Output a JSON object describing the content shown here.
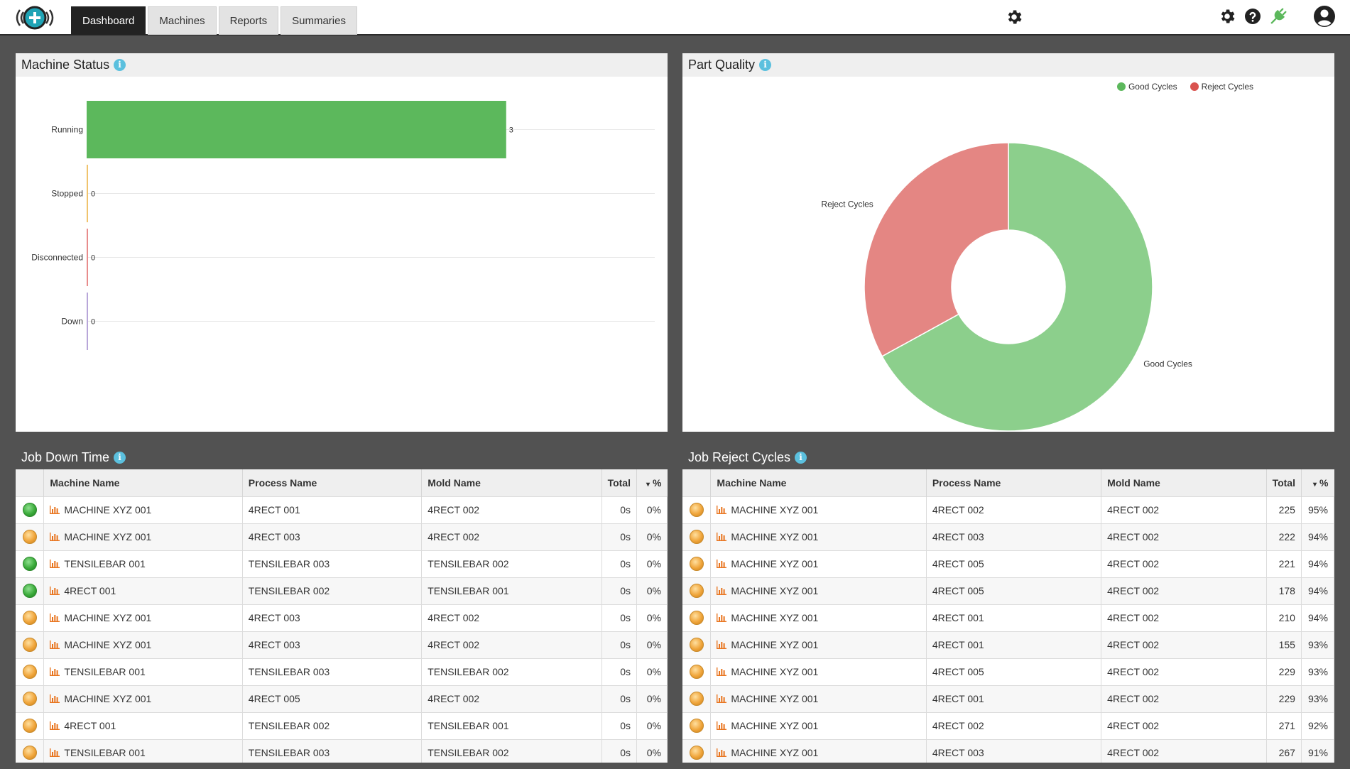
{
  "nav": {
    "logo_icon": "plus-signal-logo",
    "tabs": [
      {
        "label": "Dashboard",
        "active": true
      },
      {
        "label": "Machines",
        "active": false
      },
      {
        "label": "Reports",
        "active": false
      },
      {
        "label": "Summaries",
        "active": false
      }
    ],
    "icons": [
      "gear-icon",
      "help-icon",
      "plug-icon",
      "user-account-icon"
    ],
    "plug_color": "#5cb85c"
  },
  "machine_status": {
    "title": "Machine Status",
    "info_glyph": "i"
  },
  "part_quality": {
    "title": "Part Quality",
    "info_glyph": "i",
    "legend": [
      {
        "label": "Good Cycles",
        "color": "#5cb85c"
      },
      {
        "label": "Reject Cycles",
        "color": "#d9534f"
      }
    ]
  },
  "chart_data": [
    {
      "type": "bar",
      "orientation": "horizontal",
      "categories": [
        "Running",
        "Stopped",
        "Disconnected",
        "Down"
      ],
      "values": [
        3,
        0,
        0,
        0
      ],
      "colors": [
        "#5cb85c",
        "#f0c36d",
        "#e88c8c",
        "#b8a6d9"
      ],
      "xlim": [
        0,
        3.25
      ],
      "grid": true
    },
    {
      "type": "pie",
      "donut": true,
      "labels": [
        "Good Cycles",
        "Reject Cycles"
      ],
      "values": [
        67,
        33
      ],
      "colors": [
        "#8ccf8c",
        "#e48683"
      ]
    }
  ],
  "job_down_time": {
    "title": "Job Down Time",
    "info_glyph": "i",
    "columns": [
      "Machine Name",
      "Process Name",
      "Mold Name",
      "Total",
      "%"
    ],
    "sort_glyph": "▾",
    "rows": [
      {
        "status": "green",
        "machine": "MACHINE XYZ 001",
        "process": "4RECT 001",
        "mold": "4RECT 002",
        "total": "0s",
        "pct": "0%"
      },
      {
        "status": "orange",
        "machine": "MACHINE XYZ 001",
        "process": "4RECT 003",
        "mold": "4RECT 002",
        "total": "0s",
        "pct": "0%"
      },
      {
        "status": "green",
        "machine": "TENSILEBAR 001",
        "process": "TENSILEBAR 003",
        "mold": "TENSILEBAR 002",
        "total": "0s",
        "pct": "0%"
      },
      {
        "status": "green",
        "machine": "4RECT 001",
        "process": "TENSILEBAR 002",
        "mold": "TENSILEBAR 001",
        "total": "0s",
        "pct": "0%"
      },
      {
        "status": "orange",
        "machine": "MACHINE XYZ 001",
        "process": "4RECT 003",
        "mold": "4RECT 002",
        "total": "0s",
        "pct": "0%"
      },
      {
        "status": "orange",
        "machine": "MACHINE XYZ 001",
        "process": "4RECT 003",
        "mold": "4RECT 002",
        "total": "0s",
        "pct": "0%"
      },
      {
        "status": "orange",
        "machine": "TENSILEBAR 001",
        "process": "TENSILEBAR 003",
        "mold": "TENSILEBAR 002",
        "total": "0s",
        "pct": "0%"
      },
      {
        "status": "orange",
        "machine": "MACHINE XYZ 001",
        "process": "4RECT 005",
        "mold": "4RECT 002",
        "total": "0s",
        "pct": "0%"
      },
      {
        "status": "orange",
        "machine": "4RECT 001",
        "process": "TENSILEBAR 002",
        "mold": "TENSILEBAR 001",
        "total": "0s",
        "pct": "0%"
      },
      {
        "status": "orange",
        "machine": "TENSILEBAR 001",
        "process": "TENSILEBAR 003",
        "mold": "TENSILEBAR 002",
        "total": "0s",
        "pct": "0%"
      }
    ]
  },
  "job_reject_cycles": {
    "title": "Job Reject Cycles",
    "info_glyph": "i",
    "columns": [
      "Machine Name",
      "Process Name",
      "Mold Name",
      "Total",
      "%"
    ],
    "sort_glyph": "▾",
    "rows": [
      {
        "status": "orange",
        "machine": "MACHINE XYZ 001",
        "process": "4RECT 002",
        "mold": "4RECT 002",
        "total": "225",
        "pct": "95%"
      },
      {
        "status": "orange",
        "machine": "MACHINE XYZ 001",
        "process": "4RECT 003",
        "mold": "4RECT 002",
        "total": "222",
        "pct": "94%"
      },
      {
        "status": "orange",
        "machine": "MACHINE XYZ 001",
        "process": "4RECT 005",
        "mold": "4RECT 002",
        "total": "221",
        "pct": "94%"
      },
      {
        "status": "orange",
        "machine": "MACHINE XYZ 001",
        "process": "4RECT 005",
        "mold": "4RECT 002",
        "total": "178",
        "pct": "94%"
      },
      {
        "status": "orange",
        "machine": "MACHINE XYZ 001",
        "process": "4RECT 001",
        "mold": "4RECT 002",
        "total": "210",
        "pct": "94%"
      },
      {
        "status": "orange",
        "machine": "MACHINE XYZ 001",
        "process": "4RECT 001",
        "mold": "4RECT 002",
        "total": "155",
        "pct": "93%"
      },
      {
        "status": "orange",
        "machine": "MACHINE XYZ 001",
        "process": "4RECT 005",
        "mold": "4RECT 002",
        "total": "229",
        "pct": "93%"
      },
      {
        "status": "orange",
        "machine": "MACHINE XYZ 001",
        "process": "4RECT 001",
        "mold": "4RECT 002",
        "total": "229",
        "pct": "93%"
      },
      {
        "status": "orange",
        "machine": "MACHINE XYZ 001",
        "process": "4RECT 002",
        "mold": "4RECT 002",
        "total": "271",
        "pct": "92%"
      },
      {
        "status": "orange",
        "machine": "MACHINE XYZ 001",
        "process": "4RECT 003",
        "mold": "4RECT 002",
        "total": "267",
        "pct": "91%"
      }
    ]
  }
}
